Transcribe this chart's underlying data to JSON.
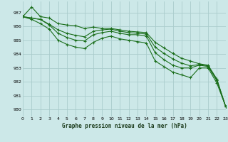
{
  "title": "Graphe pression niveau de la mer (hPa)",
  "bg_color": "#cce8e8",
  "grid_color": "#aacccc",
  "line_color": "#1a6e1a",
  "xlim": [
    0,
    23
  ],
  "ylim": [
    979.5,
    987.8
  ],
  "yticks": [
    980,
    981,
    982,
    983,
    984,
    985,
    986,
    987
  ],
  "xticks": [
    0,
    1,
    2,
    3,
    4,
    5,
    6,
    7,
    8,
    9,
    10,
    11,
    12,
    13,
    14,
    15,
    16,
    17,
    18,
    19,
    20,
    21,
    22,
    23
  ],
  "series": [
    [
      986.7,
      987.4,
      986.7,
      986.6,
      986.2,
      986.1,
      986.05,
      985.85,
      985.95,
      985.85,
      985.85,
      985.75,
      985.65,
      985.6,
      985.55,
      984.85,
      984.45,
      984.05,
      983.7,
      983.5,
      983.3,
      983.2,
      982.2,
      980.2
    ],
    [
      986.7,
      986.6,
      986.5,
      986.15,
      985.75,
      985.5,
      985.35,
      985.25,
      985.65,
      985.75,
      985.8,
      985.65,
      985.55,
      985.5,
      985.45,
      984.5,
      984.05,
      983.65,
      983.35,
      983.15,
      983.25,
      983.15,
      982.1,
      980.2
    ],
    [
      986.7,
      986.6,
      986.5,
      986.1,
      985.5,
      985.2,
      985.0,
      984.95,
      985.4,
      985.55,
      985.65,
      985.5,
      985.4,
      985.4,
      985.3,
      984.1,
      983.6,
      983.2,
      983.0,
      983.0,
      983.2,
      983.1,
      982.1,
      980.2
    ],
    [
      986.7,
      986.5,
      986.2,
      985.8,
      985.0,
      984.7,
      984.5,
      984.4,
      984.85,
      985.15,
      985.3,
      985.1,
      985.0,
      984.9,
      984.8,
      983.5,
      983.1,
      982.7,
      982.5,
      982.3,
      983.0,
      983.0,
      981.9,
      980.2
    ]
  ]
}
